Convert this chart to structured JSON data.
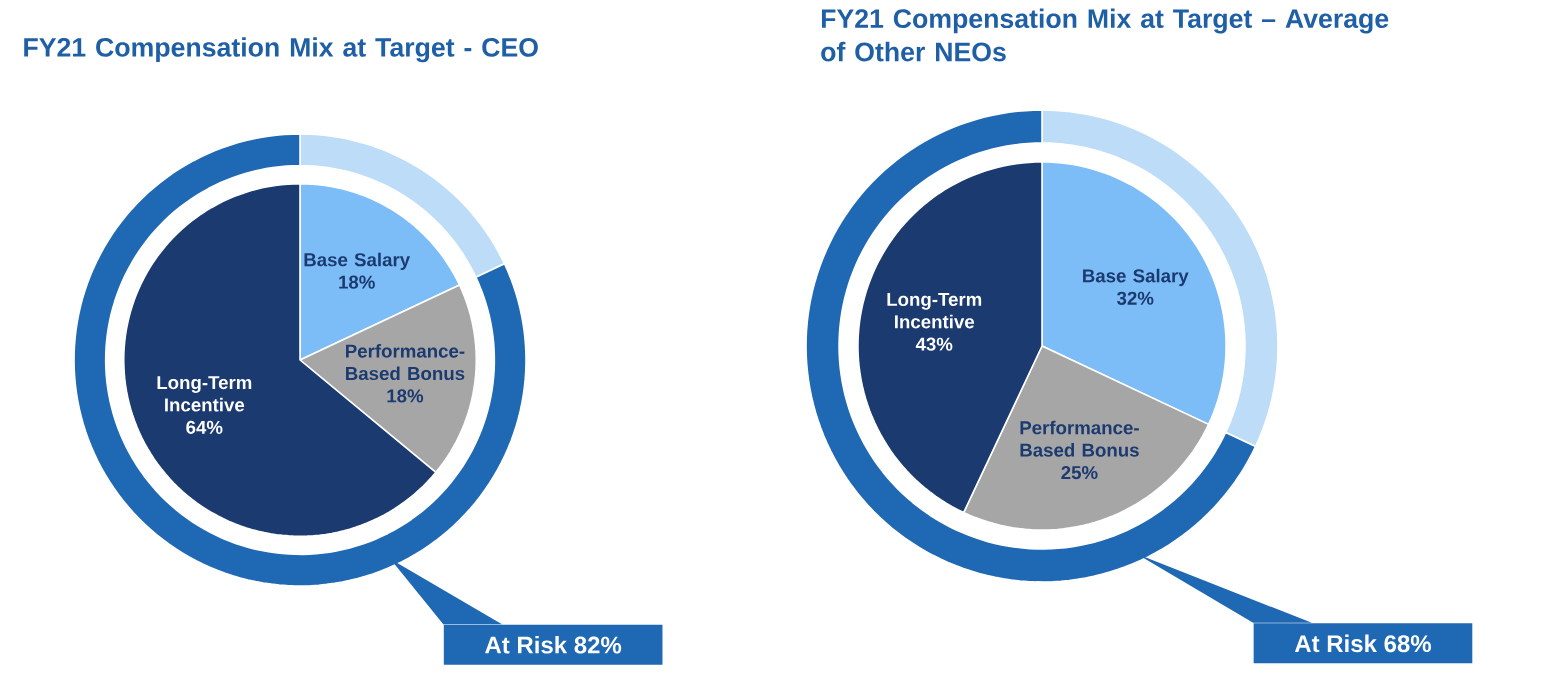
{
  "chart_data": [
    {
      "type": "pie",
      "title": "FY21 Compensation Mix at Target - CEO",
      "categories": [
        "Base Salary",
        "Performance-Based Bonus",
        "Long-Term Incentive"
      ],
      "values": [
        18,
        18,
        64
      ],
      "colors": [
        "#7dbdf7",
        "#a6a6a6",
        "#1b3a70"
      ],
      "value_labels": [
        "18%",
        "18%",
        "64%"
      ]
    },
    {
      "type": "donut",
      "categories": [
        null,
        null
      ],
      "values": [
        18,
        82
      ],
      "colors": [
        "#bcdcf8",
        "#1f68b3"
      ],
      "annotations": [
        "At Risk 82%"
      ]
    },
    {
      "type": "pie",
      "title": "FY21 Compensation Mix at Target – Average of Other NEOs",
      "categories": [
        "Base Salary",
        "Performance-Based Bonus",
        "Long-Term Incentive"
      ],
      "values": [
        32,
        25,
        43
      ],
      "colors": [
        "#7dbdf7",
        "#a6a6a6",
        "#1b3a70"
      ],
      "value_labels": [
        "32%",
        "25%",
        "43%"
      ]
    },
    {
      "type": "donut",
      "categories": [
        null,
        null
      ],
      "values": [
        32,
        68
      ],
      "colors": [
        "#bcdcf8",
        "#1f68b3"
      ],
      "annotations": [
        "At Risk 68%"
      ]
    }
  ]
}
